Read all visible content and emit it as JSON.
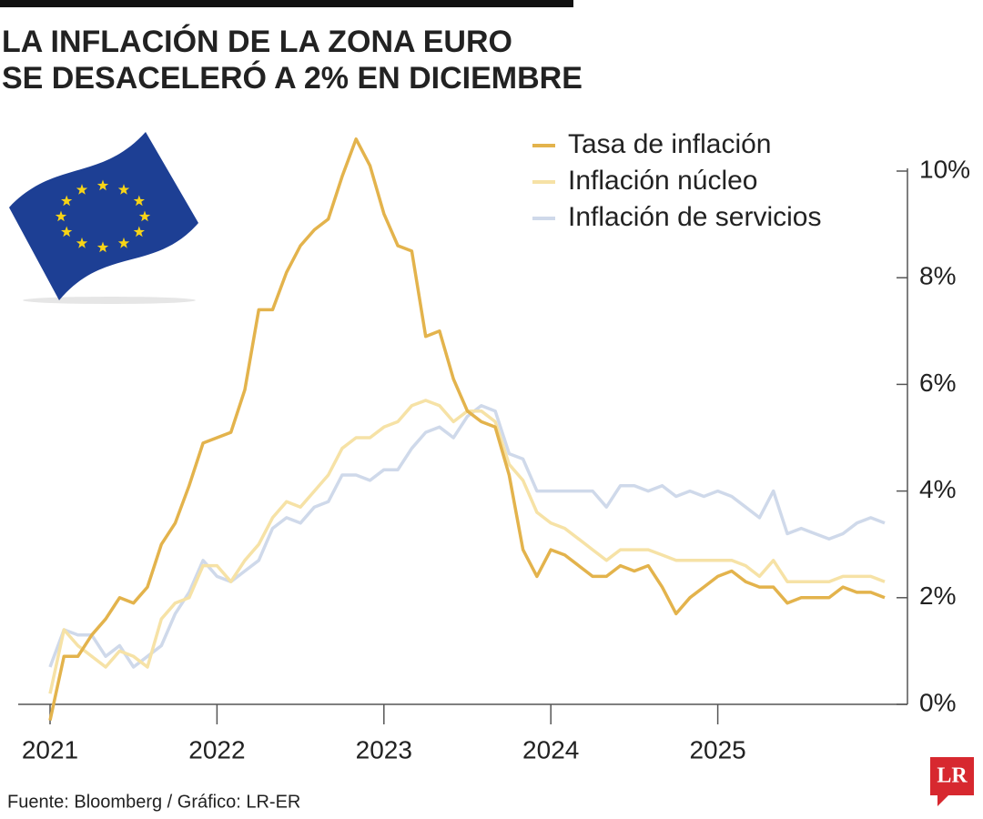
{
  "chart_data": {
    "type": "line",
    "title_lines": [
      "LA INFLACIÓN DE LA ZONA EURO",
      "SE DESACELERÓ A 2% EN DICIEMBRE"
    ],
    "source": "Fuente: Bloomberg / Gráfico: LR-ER",
    "logo": "LR",
    "x": [
      2021,
      2021.0833,
      2021.1667,
      2021.25,
      2021.3333,
      2021.4167,
      2021.5,
      2021.5833,
      2021.6667,
      2021.75,
      2021.8333,
      2021.9167,
      2022,
      2022.0833,
      2022.1667,
      2022.25,
      2022.3333,
      2022.4167,
      2022.5,
      2022.5833,
      2022.6667,
      2022.75,
      2022.8333,
      2022.9167,
      2023,
      2023.0833,
      2023.1667,
      2023.25,
      2023.3333,
      2023.4167,
      2023.5,
      2023.5833,
      2023.6667,
      2023.75,
      2023.8333,
      2023.9167,
      2024,
      2024.0833,
      2024.1667,
      2024.25,
      2024.3333,
      2024.4167,
      2024.5,
      2024.5833,
      2024.6667,
      2024.75,
      2024.8333,
      2024.9167,
      2025,
      2025.0833,
      2025.1667,
      2025.25,
      2025.3333,
      2025.4167,
      2025.5,
      2025.5833,
      2025.6667,
      2025.75,
      2025.8333,
      2025.9167,
      2026
    ],
    "series": [
      {
        "name": "Tasa de inflación",
        "color": "#e3b34c",
        "values": [
          -0.3,
          0.9,
          0.9,
          1.3,
          1.6,
          2.0,
          1.9,
          2.2,
          3.0,
          3.4,
          4.1,
          4.9,
          5.0,
          5.1,
          5.9,
          7.4,
          7.4,
          8.1,
          8.6,
          8.9,
          9.1,
          9.9,
          10.6,
          10.1,
          9.2,
          8.6,
          8.5,
          6.9,
          7.0,
          6.1,
          5.5,
          5.3,
          5.2,
          4.3,
          2.9,
          2.4,
          2.9,
          2.8,
          2.6,
          2.4,
          2.4,
          2.6,
          2.5,
          2.6,
          2.2,
          1.7,
          2.0,
          2.2,
          2.4,
          2.5,
          2.3,
          2.2,
          2.2,
          1.9,
          2.0,
          2.0,
          2.0,
          2.2,
          2.1,
          2.1,
          2.0
        ]
      },
      {
        "name": "Inflación núcleo",
        "color": "#f6e2a6",
        "values": [
          0.2,
          1.4,
          1.1,
          0.9,
          0.7,
          1.0,
          0.9,
          0.7,
          1.6,
          1.9,
          2.0,
          2.6,
          2.6,
          2.3,
          2.7,
          3.0,
          3.5,
          3.8,
          3.7,
          4.0,
          4.3,
          4.8,
          5.0,
          5.0,
          5.2,
          5.3,
          5.6,
          5.7,
          5.6,
          5.3,
          5.5,
          5.5,
          5.3,
          4.5,
          4.2,
          3.6,
          3.4,
          3.3,
          3.1,
          2.9,
          2.7,
          2.9,
          2.9,
          2.9,
          2.8,
          2.7,
          2.7,
          2.7,
          2.7,
          2.7,
          2.6,
          2.4,
          2.7,
          2.3,
          2.3,
          2.3,
          2.3,
          2.4,
          2.4,
          2.4,
          2.3
        ]
      },
      {
        "name": "Inflación de servicios",
        "color": "#cfd9ea",
        "values": [
          0.7,
          1.4,
          1.3,
          1.3,
          0.9,
          1.1,
          0.7,
          0.9,
          1.1,
          1.7,
          2.1,
          2.7,
          2.4,
          2.3,
          2.5,
          2.7,
          3.3,
          3.5,
          3.4,
          3.7,
          3.8,
          4.3,
          4.3,
          4.2,
          4.4,
          4.4,
          4.8,
          5.1,
          5.2,
          5.0,
          5.4,
          5.6,
          5.5,
          4.7,
          4.6,
          4.0,
          4.0,
          4.0,
          4.0,
          4.0,
          3.7,
          4.1,
          4.1,
          4.0,
          4.1,
          3.9,
          4.0,
          3.9,
          4.0,
          3.9,
          3.7,
          3.5,
          4.0,
          3.2,
          3.3,
          3.2,
          3.1,
          3.2,
          3.4,
          3.5,
          3.4
        ]
      }
    ],
    "xlim": [
      2021,
      2026
    ],
    "xticks": [
      2021,
      2022,
      2023,
      2024,
      2025
    ],
    "ylim": [
      0,
      10
    ],
    "yticks": [
      {
        "value": 0,
        "label": "0%"
      },
      {
        "value": 2,
        "label": "2%"
      },
      {
        "value": 4,
        "label": "4%"
      },
      {
        "value": 6,
        "label": "6%"
      },
      {
        "value": 8,
        "label": "8%"
      },
      {
        "value": 10,
        "label": "10%"
      }
    ]
  }
}
